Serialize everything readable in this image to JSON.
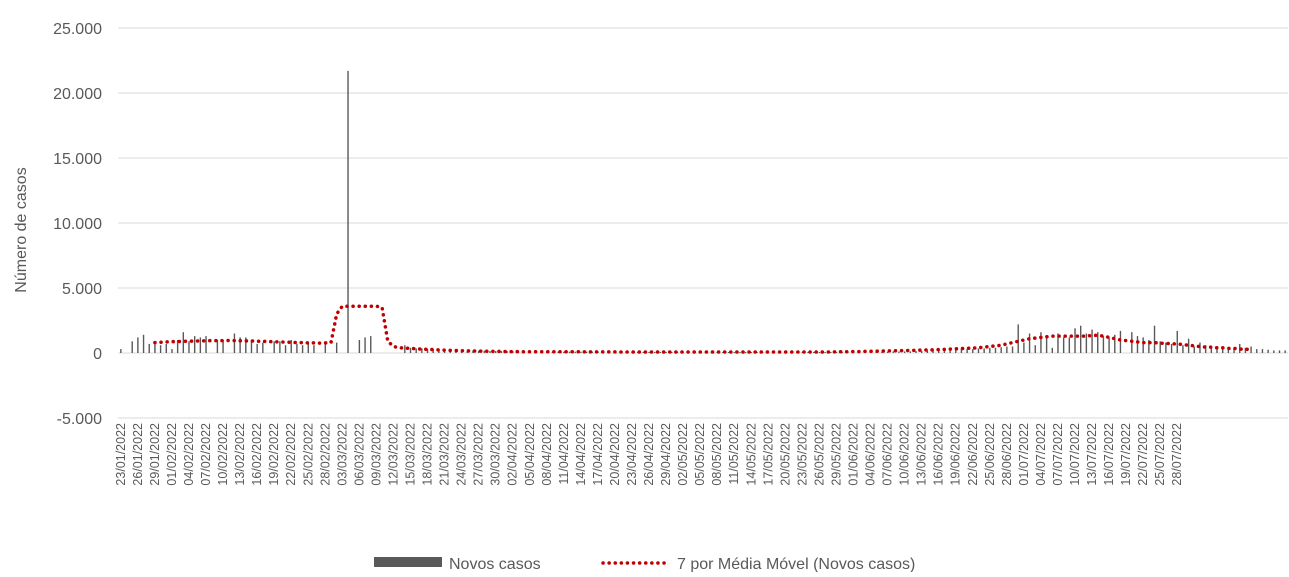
{
  "chart_data": {
    "type": "bar",
    "title": "",
    "xlabel": "",
    "ylabel": "Número de casos",
    "ylim": [
      -5000,
      25000
    ],
    "y_ticks": [
      -5000,
      0,
      5000,
      10000,
      15000,
      20000,
      25000
    ],
    "y_tick_labels": [
      "-5.000",
      "0",
      "5.000",
      "10.000",
      "15.000",
      "20.000",
      "25.000"
    ],
    "grid": true,
    "legend_position": "bottom",
    "start_date": "23/01/2022",
    "end_date": "28/07/2022",
    "x_tick_labels": [
      "23/01/2022",
      "26/01/2022",
      "29/01/2022",
      "01/02/2022",
      "04/02/2022",
      "07/02/2022",
      "10/02/2022",
      "13/02/2022",
      "16/02/2022",
      "19/02/2022",
      "22/02/2022",
      "25/02/2022",
      "28/02/2022",
      "03/03/2022",
      "06/03/2022",
      "09/03/2022",
      "12/03/2022",
      "15/03/2022",
      "18/03/2022",
      "21/03/2022",
      "24/03/2022",
      "27/03/2022",
      "30/03/2022",
      "02/04/2022",
      "05/04/2022",
      "08/04/2022",
      "11/04/2022",
      "14/04/2022",
      "17/04/2022",
      "20/04/2022",
      "23/04/2022",
      "26/04/2022",
      "29/04/2022",
      "02/05/2022",
      "05/05/2022",
      "08/05/2022",
      "11/05/2022",
      "14/05/2022",
      "17/05/2022",
      "20/05/2022",
      "23/05/2022",
      "26/05/2022",
      "29/05/2022",
      "01/06/2022",
      "04/06/2022",
      "07/06/2022",
      "10/06/2022",
      "13/06/2022",
      "16/06/2022",
      "19/06/2022",
      "22/06/2022",
      "25/06/2022",
      "28/06/2022",
      "01/07/2022",
      "04/07/2022",
      "07/07/2022",
      "10/07/2022",
      "13/07/2022",
      "16/07/2022",
      "19/07/2022",
      "22/07/2022",
      "25/07/2022",
      "28/07/2022"
    ],
    "series": [
      {
        "name": "Novos casos",
        "type": "bar",
        "color": "#595959",
        "values": [
          300,
          0,
          900,
          1200,
          1400,
          700,
          800,
          600,
          700,
          300,
          1000,
          1600,
          900,
          1300,
          1200,
          1300,
          0,
          1000,
          1000,
          0,
          1500,
          1200,
          1200,
          1000,
          700,
          800,
          0,
          900,
          900,
          600,
          1000,
          700,
          600,
          700,
          600,
          0,
          800,
          0,
          800,
          0,
          21700,
          0,
          1000,
          1200,
          1300,
          0,
          0,
          0,
          0,
          0,
          600,
          400,
          350,
          350,
          300,
          300,
          300,
          250,
          250,
          200,
          200,
          200,
          200,
          180,
          180,
          150,
          150,
          150,
          150,
          150,
          120,
          120,
          120,
          120,
          120,
          120,
          100,
          100,
          100,
          100,
          100,
          100,
          100,
          100,
          100,
          100,
          100,
          100,
          100,
          100,
          80,
          80,
          80,
          80,
          80,
          80,
          80,
          80,
          80,
          80,
          80,
          80,
          80,
          80,
          80,
          80,
          80,
          80,
          80,
          80,
          80,
          80,
          80,
          80,
          80,
          80,
          80,
          80,
          80,
          80,
          80,
          80,
          80,
          80,
          80,
          80,
          80,
          80,
          80,
          80,
          80,
          80,
          100,
          100,
          100,
          100,
          120,
          120,
          120,
          120,
          150,
          150,
          200,
          200,
          200,
          200,
          250,
          250,
          300,
          300,
          300,
          350,
          350,
          400,
          400,
          450,
          500,
          500,
          2200,
          800,
          1500,
          600,
          1600,
          1200,
          400,
          1500,
          1200,
          1200,
          1900,
          2100,
          1500,
          1800,
          1600,
          1300,
          1200,
          1400,
          1700,
          0,
          1600,
          1300,
          1200,
          1000,
          2100,
          900,
          800,
          700,
          1700,
          600,
          1100,
          500,
          800,
          600,
          500,
          400,
          500,
          400,
          300,
          700,
          400,
          500,
          300,
          300,
          250,
          200,
          200,
          200
        ]
      },
      {
        "name": "7 por Média Móvel (Novos casos)",
        "type": "line",
        "style": "dotted",
        "color": "#c00000",
        "start_index": 6,
        "values": [
          800,
          820,
          850,
          870,
          880,
          900,
          900,
          920,
          930,
          940,
          950,
          950,
          950,
          960,
          950,
          940,
          930,
          920,
          900,
          900,
          880,
          860,
          850,
          830,
          820,
          800,
          800,
          780,
          780,
          760,
          780,
          800,
          3000,
          3600,
          3600,
          3600,
          3600,
          3600,
          3600,
          3600,
          3500,
          900,
          500,
          400,
          380,
          350,
          320,
          300,
          280,
          260,
          240,
          220,
          200,
          190,
          180,
          170,
          160,
          150,
          140,
          130,
          120,
          120,
          110,
          110,
          100,
          100,
          100,
          100,
          95,
          95,
          95,
          90,
          90,
          90,
          90,
          90,
          85,
          85,
          85,
          85,
          85,
          85,
          80,
          80,
          80,
          80,
          80,
          80,
          80,
          80,
          80,
          80,
          80,
          80,
          80,
          80,
          80,
          80,
          80,
          80,
          80,
          80,
          80,
          80,
          80,
          80,
          80,
          80,
          80,
          80,
          80,
          80,
          80,
          80,
          80,
          80,
          80,
          80,
          80,
          85,
          90,
          95,
          100,
          105,
          110,
          120,
          130,
          140,
          150,
          160,
          170,
          180,
          190,
          200,
          210,
          220,
          230,
          240,
          260,
          280,
          300,
          320,
          340,
          360,
          380,
          400,
          450,
          500,
          550,
          600,
          700,
          800,
          900,
          1000,
          1100,
          1150,
          1200,
          1250,
          1300,
          1300,
          1300,
          1300,
          1300,
          1300,
          1300,
          1350,
          1350,
          1300,
          1200,
          1100,
          1000,
          950,
          900,
          850,
          800,
          800,
          800,
          750,
          750,
          700,
          700,
          650,
          600,
          550,
          500,
          450,
          450,
          400,
          400,
          350,
          350,
          300,
          300,
          250
        ]
      }
    ]
  }
}
